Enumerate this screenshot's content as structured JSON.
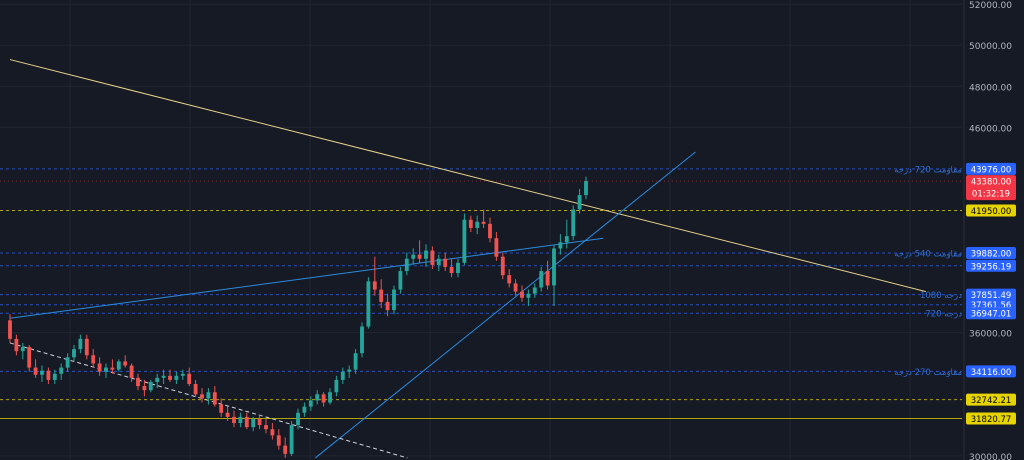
{
  "chart_data": {
    "type": "candlestick",
    "ylim": [
      29800,
      52200
    ],
    "price_axis_ticks": [
      "30000.00",
      "36000.00",
      "46000.00",
      "48000.00",
      "50000.00",
      "52000.00"
    ],
    "candles_ohlc": [
      [
        36600,
        36900,
        35500,
        35700
      ],
      [
        35700,
        35900,
        34900,
        35100
      ],
      [
        35100,
        35500,
        34700,
        35300
      ],
      [
        35300,
        35400,
        34100,
        34300
      ],
      [
        34300,
        34700,
        33800,
        33950
      ],
      [
        33950,
        34400,
        33600,
        34150
      ],
      [
        34150,
        34300,
        33500,
        33700
      ],
      [
        33700,
        34200,
        33500,
        34000
      ],
      [
        34000,
        34500,
        33700,
        34300
      ],
      [
        34300,
        35000,
        34100,
        34800
      ],
      [
        34800,
        35400,
        34600,
        35200
      ],
      [
        35200,
        35900,
        35000,
        35700
      ],
      [
        35700,
        35900,
        34700,
        34900
      ],
      [
        34900,
        35200,
        34300,
        34500
      ],
      [
        34500,
        34800,
        33900,
        34100
      ],
      [
        34100,
        34500,
        33800,
        34300
      ],
      [
        34300,
        34700,
        34000,
        34200
      ],
      [
        34200,
        34700,
        34100,
        34600
      ],
      [
        34600,
        34900,
        34300,
        34400
      ],
      [
        34400,
        34500,
        33600,
        33800
      ],
      [
        33800,
        34000,
        33200,
        33400
      ],
      [
        33400,
        33700,
        32900,
        33200
      ],
      [
        33200,
        33700,
        33100,
        33600
      ],
      [
        33600,
        34000,
        33300,
        33800
      ],
      [
        33800,
        34200,
        33500,
        33900
      ],
      [
        33900,
        34200,
        33600,
        33700
      ],
      [
        33700,
        34100,
        33500,
        33900
      ],
      [
        33900,
        34200,
        33700,
        34000
      ],
      [
        34000,
        34300,
        33400,
        33500
      ],
      [
        33500,
        33700,
        32900,
        33000
      ],
      [
        33000,
        33300,
        32600,
        32800
      ],
      [
        32800,
        33300,
        32500,
        33100
      ],
      [
        33100,
        33400,
        32400,
        32500
      ],
      [
        32500,
        32800,
        31900,
        32100
      ],
      [
        32100,
        32400,
        31700,
        31900
      ],
      [
        31900,
        32200,
        31400,
        31600
      ],
      [
        31600,
        32100,
        31400,
        31900
      ],
      [
        31900,
        32100,
        31300,
        31400
      ],
      [
        31400,
        31900,
        31200,
        31800
      ],
      [
        31800,
        32000,
        31300,
        31500
      ],
      [
        31500,
        31800,
        31100,
        31300
      ],
      [
        31300,
        31600,
        30800,
        31000
      ],
      [
        31000,
        31300,
        30300,
        30500
      ],
      [
        30500,
        30900,
        29900,
        30100
      ],
      [
        30100,
        31700,
        30000,
        31500
      ],
      [
        31500,
        32300,
        31300,
        32100
      ],
      [
        32100,
        32600,
        31900,
        32400
      ],
      [
        32400,
        32900,
        32200,
        32700
      ],
      [
        32700,
        33200,
        32500,
        33000
      ],
      [
        33000,
        33100,
        32400,
        32600
      ],
      [
        32600,
        33300,
        32500,
        33100
      ],
      [
        33100,
        33900,
        32900,
        33700
      ],
      [
        33700,
        34300,
        33500,
        34100
      ],
      [
        34100,
        34400,
        33800,
        34200
      ],
      [
        34200,
        35200,
        34000,
        35000
      ],
      [
        35000,
        36500,
        34800,
        36300
      ],
      [
        36300,
        38700,
        36200,
        38500
      ],
      [
        38500,
        39700,
        37800,
        38100
      ],
      [
        38100,
        38600,
        37200,
        37500
      ],
      [
        37500,
        37900,
        36800,
        37100
      ],
      [
        37100,
        38300,
        36900,
        38100
      ],
      [
        38100,
        39200,
        37900,
        39000
      ],
      [
        39000,
        39900,
        38800,
        39600
      ],
      [
        39600,
        40100,
        39300,
        39800
      ],
      [
        39800,
        40500,
        39400,
        39600
      ],
      [
        39600,
        40300,
        39200,
        40000
      ],
      [
        40000,
        40200,
        39100,
        39300
      ],
      [
        39300,
        39800,
        39000,
        39600
      ],
      [
        39600,
        39900,
        39000,
        39200
      ],
      [
        39200,
        39600,
        38700,
        38900
      ],
      [
        38900,
        39600,
        38700,
        39400
      ],
      [
        39400,
        41800,
        39300,
        41500
      ],
      [
        41500,
        41700,
        40900,
        41100
      ],
      [
        41100,
        41700,
        40800,
        41400
      ],
      [
        41400,
        42000,
        41100,
        41300
      ],
      [
        41300,
        41600,
        40400,
        40600
      ],
      [
        40600,
        40900,
        39500,
        39700
      ],
      [
        39700,
        39900,
        38600,
        38800
      ],
      [
        38800,
        39100,
        38200,
        38400
      ],
      [
        38400,
        38600,
        37800,
        38000
      ],
      [
        38000,
        38300,
        37500,
        37700
      ],
      [
        37700,
        38100,
        37300,
        37900
      ],
      [
        37900,
        38400,
        37700,
        38200
      ],
      [
        38200,
        39200,
        38000,
        39000
      ],
      [
        39000,
        39500,
        38100,
        38300
      ],
      [
        38300,
        40300,
        37300,
        40100
      ],
      [
        40100,
        40800,
        39800,
        40400
      ],
      [
        40400,
        41500,
        40100,
        40700
      ],
      [
        40700,
        42200,
        40500,
        42000
      ],
      [
        42000,
        43000,
        41800,
        42700
      ],
      [
        42700,
        43600,
        42500,
        43380
      ]
    ],
    "horizontal_levels": [
      {
        "price": "43976.00",
        "label": "مقاومت 720 درجه",
        "color": "#2962ff",
        "style": "dashed"
      },
      {
        "price": "41950.00",
        "label": "",
        "color": "#e6d400",
        "style": "dashed"
      },
      {
        "price": "39882.00",
        "label": "مقاومت 540 درجه",
        "color": "#2962ff",
        "style": "dashed"
      },
      {
        "price": "39256.19",
        "label": "",
        "color": "#2962ff",
        "style": "dashed"
      },
      {
        "price": "37851.49",
        "label": "1080 درجه",
        "color": "#2962ff",
        "style": "dashed"
      },
      {
        "price": "37361.56",
        "label": "",
        "color": "#2962ff",
        "style": "dashed"
      },
      {
        "price": "36947.01",
        "label": "720 درجه",
        "color": "#2962ff",
        "style": "dashed"
      },
      {
        "price": "34116.00",
        "label": "مقاومت 270 درجه",
        "color": "#2962ff",
        "style": "dashed"
      },
      {
        "price": "32742.21",
        "label": "",
        "color": "#e6d400",
        "style": "dashed"
      },
      {
        "price": "31820.77",
        "label": "",
        "color": "#e6d400",
        "style": "solid"
      }
    ],
    "current_price": {
      "price": "43380.00",
      "countdown": "01:32:19",
      "color": "#f23645"
    },
    "trendlines": [
      {
        "name": "descending-resistance",
        "color": "#e6d18a",
        "dashed": false,
        "p1": [
          0,
          49300
        ],
        "p2": [
          1.59,
          38000
        ]
      },
      {
        "name": "rising-support-shallow",
        "color": "#2a8be0",
        "dashed": false,
        "p1": [
          0,
          36700
        ],
        "p2": [
          1.03,
          40600
        ]
      },
      {
        "name": "rising-support-steep",
        "color": "#2a8be0",
        "dashed": false,
        "p1": [
          0.53,
          29900
        ],
        "p2": [
          1.19,
          44800
        ]
      },
      {
        "name": "old-descending-channel",
        "color": "#d1d4dc",
        "dashed": true,
        "p1": [
          0,
          35500
        ],
        "p2": [
          0.69,
          29900
        ]
      }
    ],
    "colors": {
      "background": "#161a25",
      "grid": "#222632",
      "up": "#26a69a",
      "down": "#ef5350",
      "axis_text": "#b2b5be",
      "level_text": "#2f6fd8"
    }
  }
}
